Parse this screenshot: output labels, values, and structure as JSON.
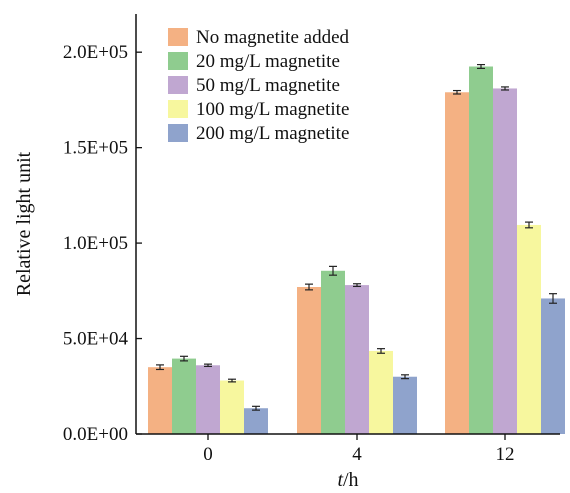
{
  "chart_data": {
    "type": "bar",
    "xlabel_italic": "t",
    "xlabel_unit": "/h",
    "ylabel": "Relative light unit",
    "categories": [
      "0",
      "4",
      "12"
    ],
    "ylim": [
      0,
      220000
    ],
    "yticks": [
      {
        "value": 0,
        "label": "0.0E+00"
      },
      {
        "value": 50000,
        "label": "5.0E+04"
      },
      {
        "value": 100000,
        "label": "1.0E+05"
      },
      {
        "value": 150000,
        "label": "1.5E+05"
      },
      {
        "value": 200000,
        "label": "2.0E+05"
      }
    ],
    "grid": false,
    "legend_position": "top-left",
    "series": [
      {
        "name": "No magnetite added",
        "color": "#F4B183",
        "values": [
          35000,
          77000,
          179000
        ],
        "errors": [
          1200,
          1500,
          900
        ]
      },
      {
        "name": "20 mg/L magnetite",
        "color": "#8FCC8F",
        "values": [
          39500,
          85500,
          192500
        ],
        "errors": [
          1200,
          2300,
          1000
        ]
      },
      {
        "name": "50 mg/L magnetite",
        "color": "#C0A7D1",
        "values": [
          36000,
          78000,
          181000
        ],
        "errors": [
          600,
          700,
          800
        ]
      },
      {
        "name": "100 mg/L magnetite",
        "color": "#F7F79E",
        "values": [
          28000,
          43500,
          109500
        ],
        "errors": [
          700,
          1200,
          1500
        ]
      },
      {
        "name": "200 mg/L magnetite",
        "color": "#8FA3CC",
        "values": [
          13500,
          30000,
          71000
        ],
        "errors": [
          1000,
          1000,
          2500
        ]
      }
    ]
  }
}
